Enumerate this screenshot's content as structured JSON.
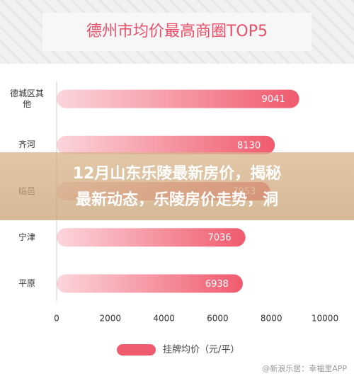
{
  "chart_data": {
    "type": "bar",
    "orientation": "horizontal",
    "title": "德州市均价最高商圈TOP5",
    "categories": [
      "德城区其他",
      "齐河",
      "临邑",
      "宁津",
      "平原"
    ],
    "values": [
      9041,
      8130,
      7953,
      7036,
      6938
    ],
    "color": "#f05a6e",
    "xlim": [
      0,
      10000
    ],
    "xticks": [
      0,
      2000,
      4000,
      6000,
      8000,
      10000
    ],
    "grid": false,
    "legend": "挂牌均价（元/平）",
    "source": "@新浪乐居：幸福里APP"
  },
  "overlay": {
    "lines": [
      "12月山东乐陵最新房价，揭秘",
      "最新动态，乐陵房价走势，洞"
    ]
  }
}
